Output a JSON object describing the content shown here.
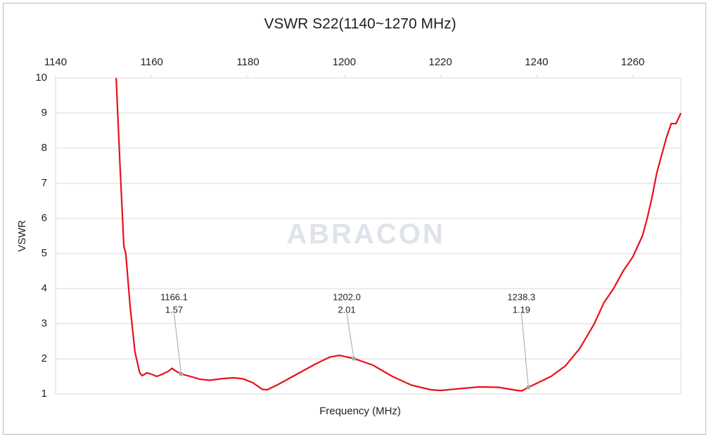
{
  "chart_data": {
    "type": "line",
    "title": "VSWR S22(1140~1270 MHz)",
    "xlabel": "Frequency (MHz)",
    "ylabel": "VSWR",
    "watermark": "ABRACON",
    "xlim": [
      1140,
      1270
    ],
    "xticks": [
      1140,
      1160,
      1180,
      1200,
      1220,
      1240,
      1260
    ],
    "ylim": [
      1,
      10
    ],
    "yticks": [
      1,
      2,
      3,
      4,
      5,
      6,
      7,
      8,
      9,
      10
    ],
    "grid": true,
    "series": [
      {
        "name": "S22",
        "color": "#e8101a",
        "x": [
          1152.6,
          1153.4,
          1154.2,
          1154.6,
          1155.5,
          1156.5,
          1157.5,
          1158,
          1159,
          1160,
          1161,
          1162,
          1163.5,
          1164.2,
          1165,
          1166.1,
          1168,
          1170,
          1172,
          1175,
          1177,
          1179,
          1181,
          1183,
          1184,
          1186,
          1190,
          1194,
          1197,
          1199,
          1202,
          1206,
          1210,
          1214,
          1218,
          1220,
          1224,
          1228,
          1232,
          1236,
          1237,
          1238.3,
          1240,
          1243,
          1246,
          1249,
          1252,
          1254,
          1256,
          1258,
          1260,
          1262,
          1263,
          1264,
          1265,
          1266,
          1267,
          1268,
          1269,
          1270
        ],
        "values": [
          10,
          7.5,
          5.2,
          5.0,
          3.5,
          2.2,
          1.6,
          1.52,
          1.6,
          1.56,
          1.5,
          1.55,
          1.65,
          1.73,
          1.65,
          1.57,
          1.5,
          1.42,
          1.39,
          1.44,
          1.46,
          1.43,
          1.32,
          1.13,
          1.12,
          1.25,
          1.55,
          1.85,
          2.05,
          2.1,
          2.01,
          1.82,
          1.5,
          1.25,
          1.12,
          1.1,
          1.15,
          1.2,
          1.19,
          1.1,
          1.09,
          1.19,
          1.3,
          1.5,
          1.8,
          2.3,
          3.0,
          3.6,
          4.0,
          4.5,
          4.9,
          5.5,
          6.0,
          6.6,
          7.3,
          7.8,
          8.3,
          8.7,
          8.7,
          9.0
        ]
      }
    ],
    "annotations": [
      {
        "x": 1166.1,
        "y": 1.57,
        "text": [
          "1166.1",
          "1.57"
        ]
      },
      {
        "x": 1202.0,
        "y": 2.01,
        "text": [
          "1202.0",
          "2.01"
        ]
      },
      {
        "x": 1238.3,
        "y": 1.19,
        "text": [
          "1238.3",
          "1.19"
        ]
      }
    ]
  }
}
